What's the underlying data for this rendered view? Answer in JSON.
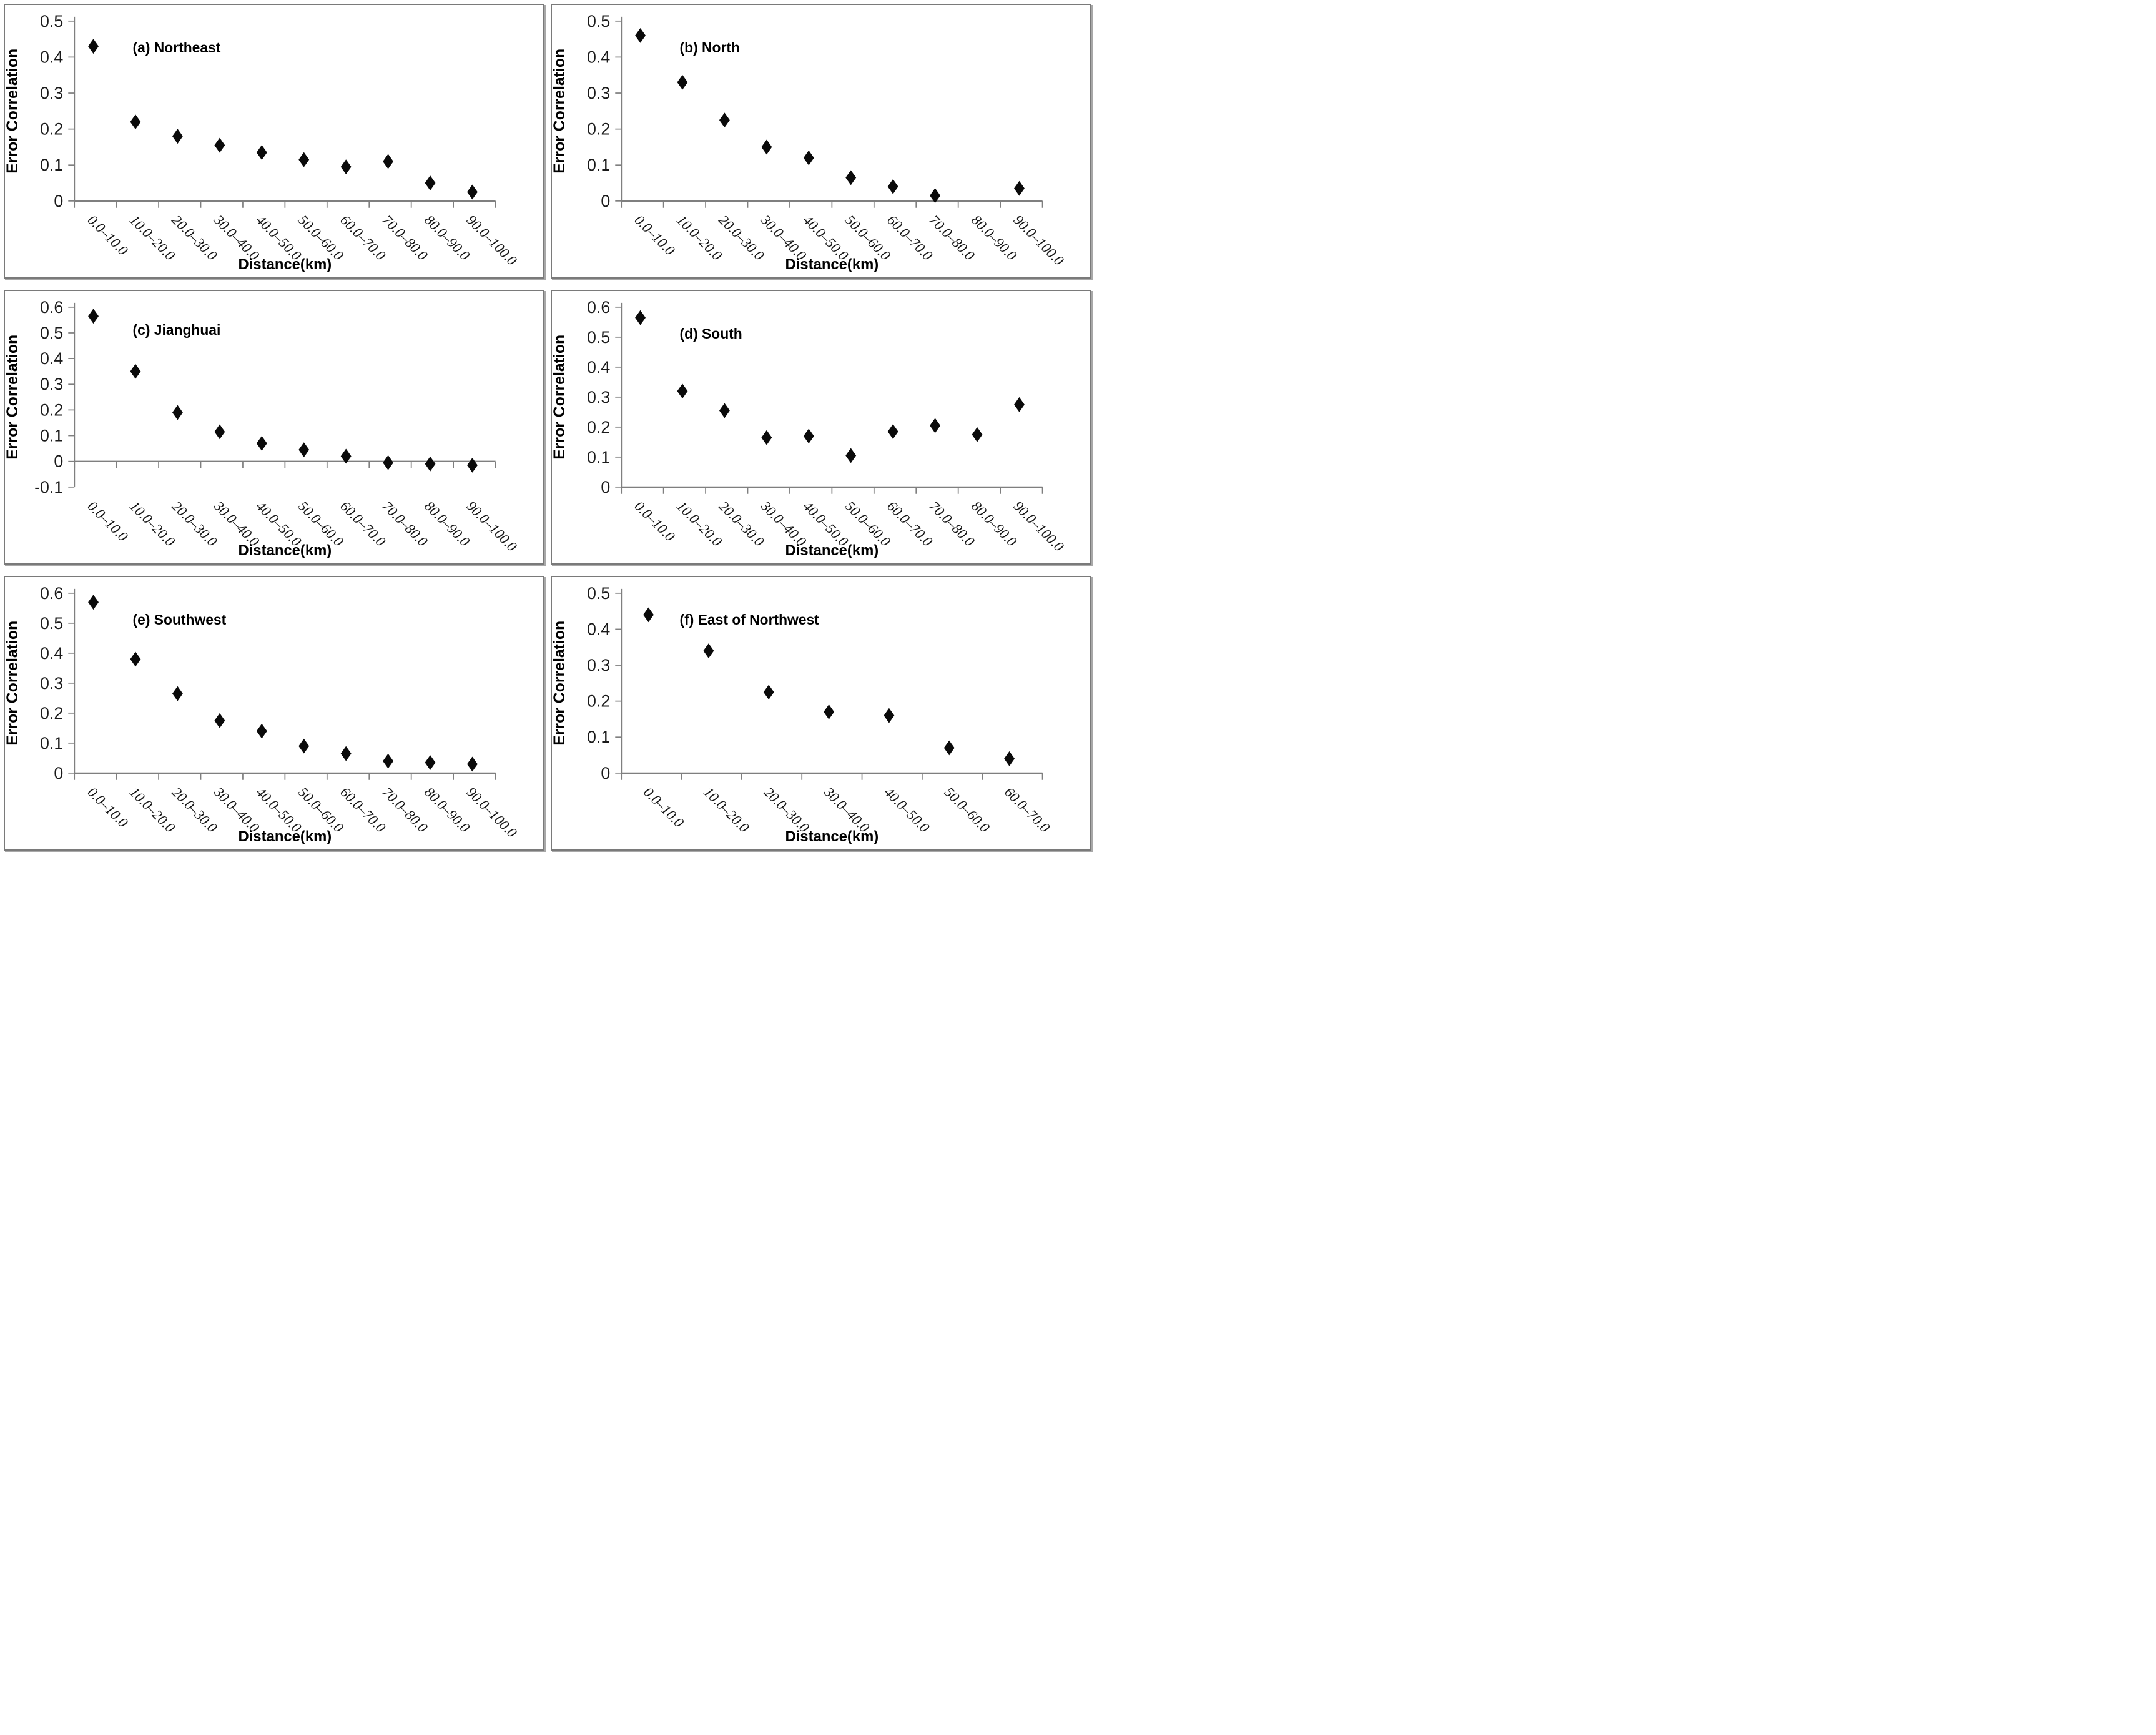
{
  "figure": {
    "background": "#ffffff",
    "panel_border_color": "#7a7a7a",
    "axis_color": "#7f7f7f",
    "marker_color": "#0a0a0a",
    "text_color": "#1a1a1a",
    "ylabel": "Error Correlation",
    "xlabel": "Distance(km)"
  },
  "chart_data": [
    {
      "type": "scatter",
      "panel_label": "(a) Northeast",
      "xlabel": "Distance(km)",
      "ylabel": "Error Correlation",
      "ylim": [
        0,
        0.5
      ],
      "ytick_step": 0.1,
      "marker": "diamond",
      "grid": false,
      "legend": "none",
      "categories": [
        "0.0–10.0",
        "10.0–20.0",
        "20.0–30.0",
        "30.0–40.0",
        "40.0–50.0",
        "50.0–60.0",
        "60.0–70.0",
        "70.0–80.0",
        "80.0–90.0",
        "90.0–100.0"
      ],
      "values": [
        0.43,
        0.22,
        0.18,
        0.155,
        0.135,
        0.115,
        0.095,
        0.11,
        0.05,
        0.025
      ]
    },
    {
      "type": "scatter",
      "panel_label": "(b) North",
      "xlabel": "Distance(km)",
      "ylabel": "Error Correlation",
      "ylim": [
        0,
        0.5
      ],
      "ytick_step": 0.1,
      "marker": "diamond",
      "grid": false,
      "legend": "none",
      "categories": [
        "0.0–10.0",
        "10.0–20.0",
        "20.0–30.0",
        "30.0–40.0",
        "40.0–50.0",
        "50.0–60.0",
        "60.0–70.0",
        "70.0–80.0",
        "80.0–90.0",
        "90.0–100.0"
      ],
      "values": [
        0.46,
        0.33,
        0.225,
        0.15,
        0.12,
        0.065,
        0.04,
        0.015,
        null,
        0.035
      ]
    },
    {
      "type": "scatter",
      "panel_label": "(c) Jianghuai",
      "xlabel": "Distance(km)",
      "ylabel": "Error Correlation",
      "ylim": [
        -0.1,
        0.6
      ],
      "ytick_step": 0.1,
      "marker": "diamond",
      "grid": false,
      "legend": "none",
      "categories": [
        "0.0–10.0",
        "10.0–20.0",
        "20.0–30.0",
        "30.0–40.0",
        "40.0–50.0",
        "50.0–60.0",
        "60.0–70.0",
        "70.0–80.0",
        "80.0–90.0",
        "90.0–100.0"
      ],
      "values": [
        0.565,
        0.35,
        0.19,
        0.115,
        0.07,
        0.045,
        0.02,
        -0.005,
        -0.01,
        -0.015
      ]
    },
    {
      "type": "scatter",
      "panel_label": "(d) South",
      "xlabel": "Distance(km)",
      "ylabel": "Error Correlation",
      "ylim": [
        0,
        0.6
      ],
      "ytick_step": 0.1,
      "marker": "diamond",
      "grid": false,
      "legend": "none",
      "categories": [
        "0.0–10.0",
        "10.0–20.0",
        "20.0–30.0",
        "30.0–40.0",
        "40.0–50.0",
        "50.0–60.0",
        "60.0–70.0",
        "70.0–80.0",
        "80.0–90.0",
        "90.0–100.0"
      ],
      "values": [
        0.565,
        0.32,
        0.255,
        0.165,
        0.17,
        0.105,
        0.185,
        0.205,
        0.175,
        0.275
      ]
    },
    {
      "type": "scatter",
      "panel_label": "(e) Southwest",
      "xlabel": "Distance(km)",
      "ylabel": "Error Correlation",
      "ylim": [
        0,
        0.6
      ],
      "ytick_step": 0.1,
      "marker": "diamond",
      "grid": false,
      "legend": "none",
      "categories": [
        "0.0–10.0",
        "10.0–20.0",
        "20.0–30.0",
        "30.0–40.0",
        "40.0–50.0",
        "50.0–60.0",
        "60.0–70.0",
        "70.0–80.0",
        "80.0–90.0",
        "90.0–100.0"
      ],
      "values": [
        0.57,
        0.38,
        0.265,
        0.175,
        0.14,
        0.09,
        0.065,
        0.04,
        0.035,
        0.03
      ]
    },
    {
      "type": "scatter",
      "panel_label": "(f) East of Northwest",
      "xlabel": "Distance(km)",
      "ylabel": "Error Correlation",
      "ylim": [
        0,
        0.5
      ],
      "ytick_step": 0.1,
      "marker": "diamond",
      "grid": false,
      "legend": "none",
      "categories": [
        "0.0–10.0",
        "10.0–20.0",
        "20.0–30.0",
        "30.0–40.0",
        "40.0–50.0",
        "50.0–60.0",
        "60.0–70.0"
      ],
      "values": [
        0.44,
        0.34,
        0.225,
        0.17,
        0.16,
        0.07,
        0.04
      ]
    }
  ]
}
